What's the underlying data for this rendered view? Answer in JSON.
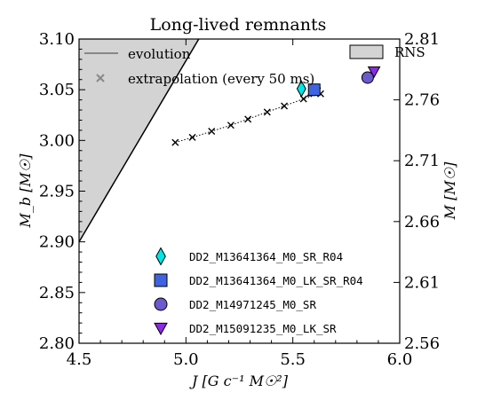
{
  "chart_data": {
    "type": "scatter",
    "title": "Long-lived remnants",
    "xlabel": "J [G c⁻¹ M☉²]",
    "ylabel": "M_b [M☉]",
    "ylabel_right": "M [M☉]",
    "xlim": [
      4.5,
      6.0
    ],
    "ylim": [
      2.8,
      3.1
    ],
    "ylim_right": [
      2.56,
      2.81
    ],
    "grid": false,
    "x_ticks": [
      "4.5",
      "5.0",
      "5.5",
      "6.0"
    ],
    "y_ticks": [
      "2.80",
      "2.85",
      "2.90",
      "2.95",
      "3.00",
      "3.05",
      "3.10"
    ],
    "y_ticks_right": [
      "2.56",
      "2.61",
      "2.66",
      "2.71",
      "2.76",
      "2.81"
    ],
    "excluded_region": {
      "name": "RNS",
      "color": "#d3d3d3",
      "boundary": [
        [
          4.5,
          2.9
        ],
        [
          5.06,
          3.1
        ]
      ]
    },
    "evolution": {
      "name": "evolution",
      "color": "#000000",
      "points": [
        [
          5.57,
          3.044
        ],
        [
          5.61,
          3.049
        ],
        [
          5.63,
          3.052
        ]
      ]
    },
    "extrapolation": {
      "name": "extrapolation (every 50 ms)",
      "color": "#000000",
      "points": [
        [
          4.95,
          2.998
        ],
        [
          5.03,
          3.003
        ],
        [
          5.12,
          3.009
        ],
        [
          5.21,
          3.015
        ],
        [
          5.29,
          3.021
        ],
        [
          5.38,
          3.028
        ],
        [
          5.46,
          3.034
        ],
        [
          5.55,
          3.041
        ],
        [
          5.63,
          3.046
        ]
      ]
    },
    "legend_top": {
      "placement": "top",
      "evolution_label": "evolution",
      "extrapolation_label": "extrapolation (every 50 ms)",
      "rns_label": "RNS"
    },
    "series": [
      {
        "name": "DD2_M13641364_M0_SR_R04",
        "marker": "diamond",
        "color": "#00e5e5",
        "x": [
          5.54
        ],
        "y": [
          3.051
        ]
      },
      {
        "name": "DD2_M13641364_M0_LK_SR_R04",
        "marker": "square",
        "color": "#3f63e0",
        "x": [
          5.6
        ],
        "y": [
          3.05
        ]
      },
      {
        "name": "DD2_M14971245_M0_SR",
        "marker": "circle",
        "color": "#6a5acd",
        "x": [
          5.85
        ],
        "y": [
          3.062
        ]
      },
      {
        "name": "DD2_M15091235_M0_LK_SR",
        "marker": "triangle-down",
        "color": "#8a2be2",
        "x": [
          5.88
        ],
        "y": [
          3.068
        ]
      }
    ],
    "legend_placement": "lower-right"
  }
}
